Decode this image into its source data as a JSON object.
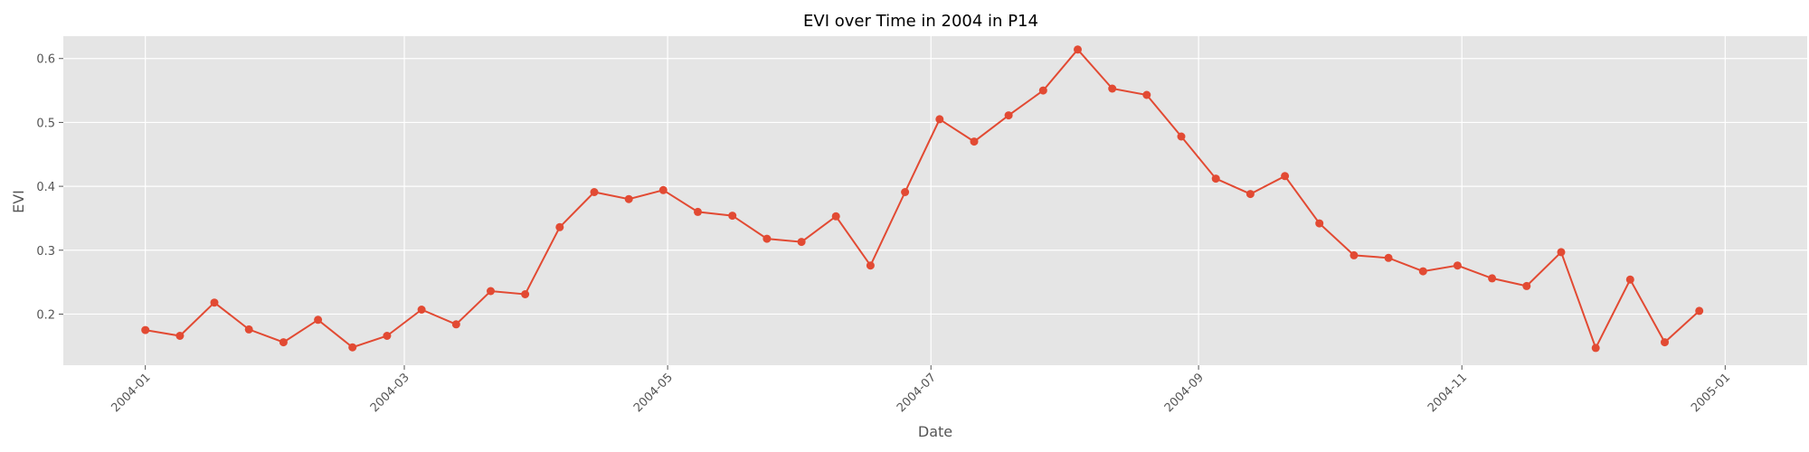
{
  "chart_data": {
    "type": "line",
    "title": "EVI over Time in 2004 in P14",
    "xlabel": "Date",
    "ylabel": "EVI",
    "x_tick_labels": [
      "2004-01",
      "2004-03",
      "2004-05",
      "2004-07",
      "2004-09",
      "2004-11",
      "2005-01"
    ],
    "x_tick_dates": [
      "2004-01-01",
      "2004-03-01",
      "2004-05-01",
      "2004-07-01",
      "2004-09-01",
      "2004-11-01",
      "2005-01-01"
    ],
    "y_ticks": [
      0.2,
      0.3,
      0.4,
      0.5,
      0.6
    ],
    "y_tick_labels": [
      "0.2",
      "0.3",
      "0.4",
      "0.5",
      "0.6"
    ],
    "xlim": [
      "2003-12-13",
      "2005-01-20"
    ],
    "ylim": [
      0.12,
      0.635
    ],
    "grid": true,
    "colors": {
      "line": "#e24a33",
      "plot_background": "#e5e5e5",
      "grid": "#ffffff",
      "tick_text": "#555555",
      "label_text": "#555555",
      "title_text": "#000000"
    },
    "x": [
      "2004-01-01",
      "2004-01-09",
      "2004-01-17",
      "2004-01-25",
      "2004-02-02",
      "2004-02-10",
      "2004-02-18",
      "2004-02-26",
      "2004-03-05",
      "2004-03-13",
      "2004-03-21",
      "2004-03-29",
      "2004-04-06",
      "2004-04-14",
      "2004-04-22",
      "2004-04-30",
      "2004-05-08",
      "2004-05-16",
      "2004-05-24",
      "2004-06-01",
      "2004-06-09",
      "2004-06-17",
      "2004-06-25",
      "2004-07-03",
      "2004-07-11",
      "2004-07-19",
      "2004-07-27",
      "2004-08-04",
      "2004-08-12",
      "2004-08-20",
      "2004-08-28",
      "2004-09-05",
      "2004-09-13",
      "2004-09-21",
      "2004-09-29",
      "2004-10-07",
      "2004-10-15",
      "2004-10-23",
      "2004-10-31",
      "2004-11-08",
      "2004-11-16",
      "2004-11-24",
      "2004-12-02",
      "2004-12-10",
      "2004-12-18",
      "2004-12-26"
    ],
    "y": [
      0.175,
      0.166,
      0.218,
      0.176,
      0.156,
      0.191,
      0.148,
      0.166,
      0.207,
      0.184,
      0.236,
      0.231,
      0.336,
      0.391,
      0.38,
      0.394,
      0.36,
      0.354,
      0.318,
      0.313,
      0.353,
      0.276,
      0.391,
      0.505,
      0.47,
      0.511,
      0.55,
      0.614,
      0.553,
      0.543,
      0.478,
      0.412,
      0.388,
      0.416,
      0.342,
      0.292,
      0.288,
      0.267,
      0.276,
      0.256,
      0.244,
      0.297,
      0.147,
      0.254,
      0.156,
      0.205
    ]
  }
}
